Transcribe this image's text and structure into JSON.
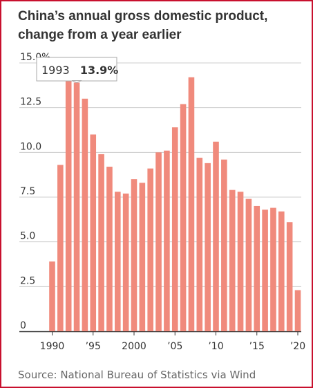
{
  "title": "China’s annual gross domestic product, change from a year earlier",
  "source": "Source: National Bureau of Statistics via Wind",
  "tooltip": {
    "year": "1993",
    "value": "13.9%"
  },
  "colors": {
    "bar": "#f08a7c",
    "frame": "#c8102e",
    "grid": "#cccccc",
    "axis": "#333333",
    "text": "#333333"
  },
  "chart_data": {
    "type": "bar",
    "title": "China’s annual gross domestic product, change from a year earlier",
    "xlabel": "",
    "ylabel": "",
    "ylim": [
      0,
      15
    ],
    "yticks": [
      "0",
      "2.5",
      "5.0",
      "7.5",
      "10.0",
      "12.5",
      "15.0%"
    ],
    "xticks": [
      {
        "year": 1990,
        "label": "1990"
      },
      {
        "year": 1995,
        "label": "’95"
      },
      {
        "year": 2000,
        "label": "2000"
      },
      {
        "year": 2005,
        "label": "’05"
      },
      {
        "year": 2010,
        "label": "’10"
      },
      {
        "year": 2015,
        "label": "’15"
      },
      {
        "year": 2020,
        "label": "’20"
      }
    ],
    "grid": true,
    "categories": [
      1990,
      1991,
      1992,
      1993,
      1994,
      1995,
      1996,
      1997,
      1998,
      1999,
      2000,
      2001,
      2002,
      2003,
      2004,
      2005,
      2006,
      2007,
      2008,
      2009,
      2010,
      2011,
      2012,
      2013,
      2014,
      2015,
      2016,
      2017,
      2018,
      2019,
      2020
    ],
    "values": [
      3.9,
      9.3,
      14.2,
      13.9,
      13.0,
      11.0,
      9.9,
      9.2,
      7.8,
      7.7,
      8.5,
      8.3,
      9.1,
      10.0,
      10.1,
      11.4,
      12.7,
      14.2,
      9.7,
      9.4,
      10.6,
      9.6,
      7.9,
      7.8,
      7.4,
      7.0,
      6.8,
      6.9,
      6.7,
      6.1,
      2.3
    ]
  }
}
